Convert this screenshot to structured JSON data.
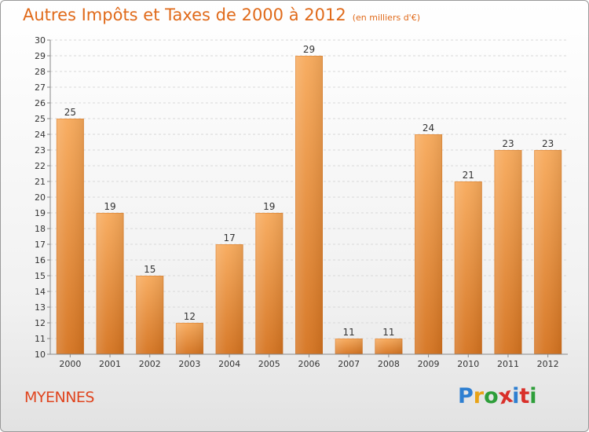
{
  "header": {
    "title": "Autres Impôts et Taxes de 2000 à 2012",
    "subtitle": "(en milliers d'€)"
  },
  "footer": {
    "commune": "MYENNES",
    "brand": "Proxiti",
    "brand_colors": [
      "#2e7fd1",
      "#e8a317",
      "#2e9e3a",
      "#d9302a",
      "#2e7fd1",
      "#d9302a",
      "#2e9e3a"
    ]
  },
  "colors": {
    "bar_top": "#f7a95a",
    "bar_bottom": "#d5731f",
    "title": "#e06a1a",
    "commune": "#e0451f",
    "grid": "#d8d8d8",
    "axis": "#888888"
  },
  "chart_data": {
    "type": "bar",
    "categories": [
      "2000",
      "2001",
      "2002",
      "2003",
      "2004",
      "2005",
      "2006",
      "2007",
      "2008",
      "2009",
      "2010",
      "2011",
      "2012"
    ],
    "values": [
      25,
      19,
      15,
      12,
      17,
      19,
      29,
      11,
      11,
      24,
      21,
      23,
      23
    ],
    "title": "Autres Impôts et Taxes de 2000 à 2012",
    "subtitle": "(en milliers d'€)",
    "xlabel": "",
    "ylabel": "",
    "ylim": [
      10,
      30
    ],
    "yticks": [
      10,
      11,
      12,
      13,
      14,
      15,
      16,
      17,
      18,
      19,
      20,
      21,
      22,
      23,
      24,
      25,
      26,
      27,
      28,
      29,
      30
    ],
    "grid": true,
    "data_labels": true
  }
}
